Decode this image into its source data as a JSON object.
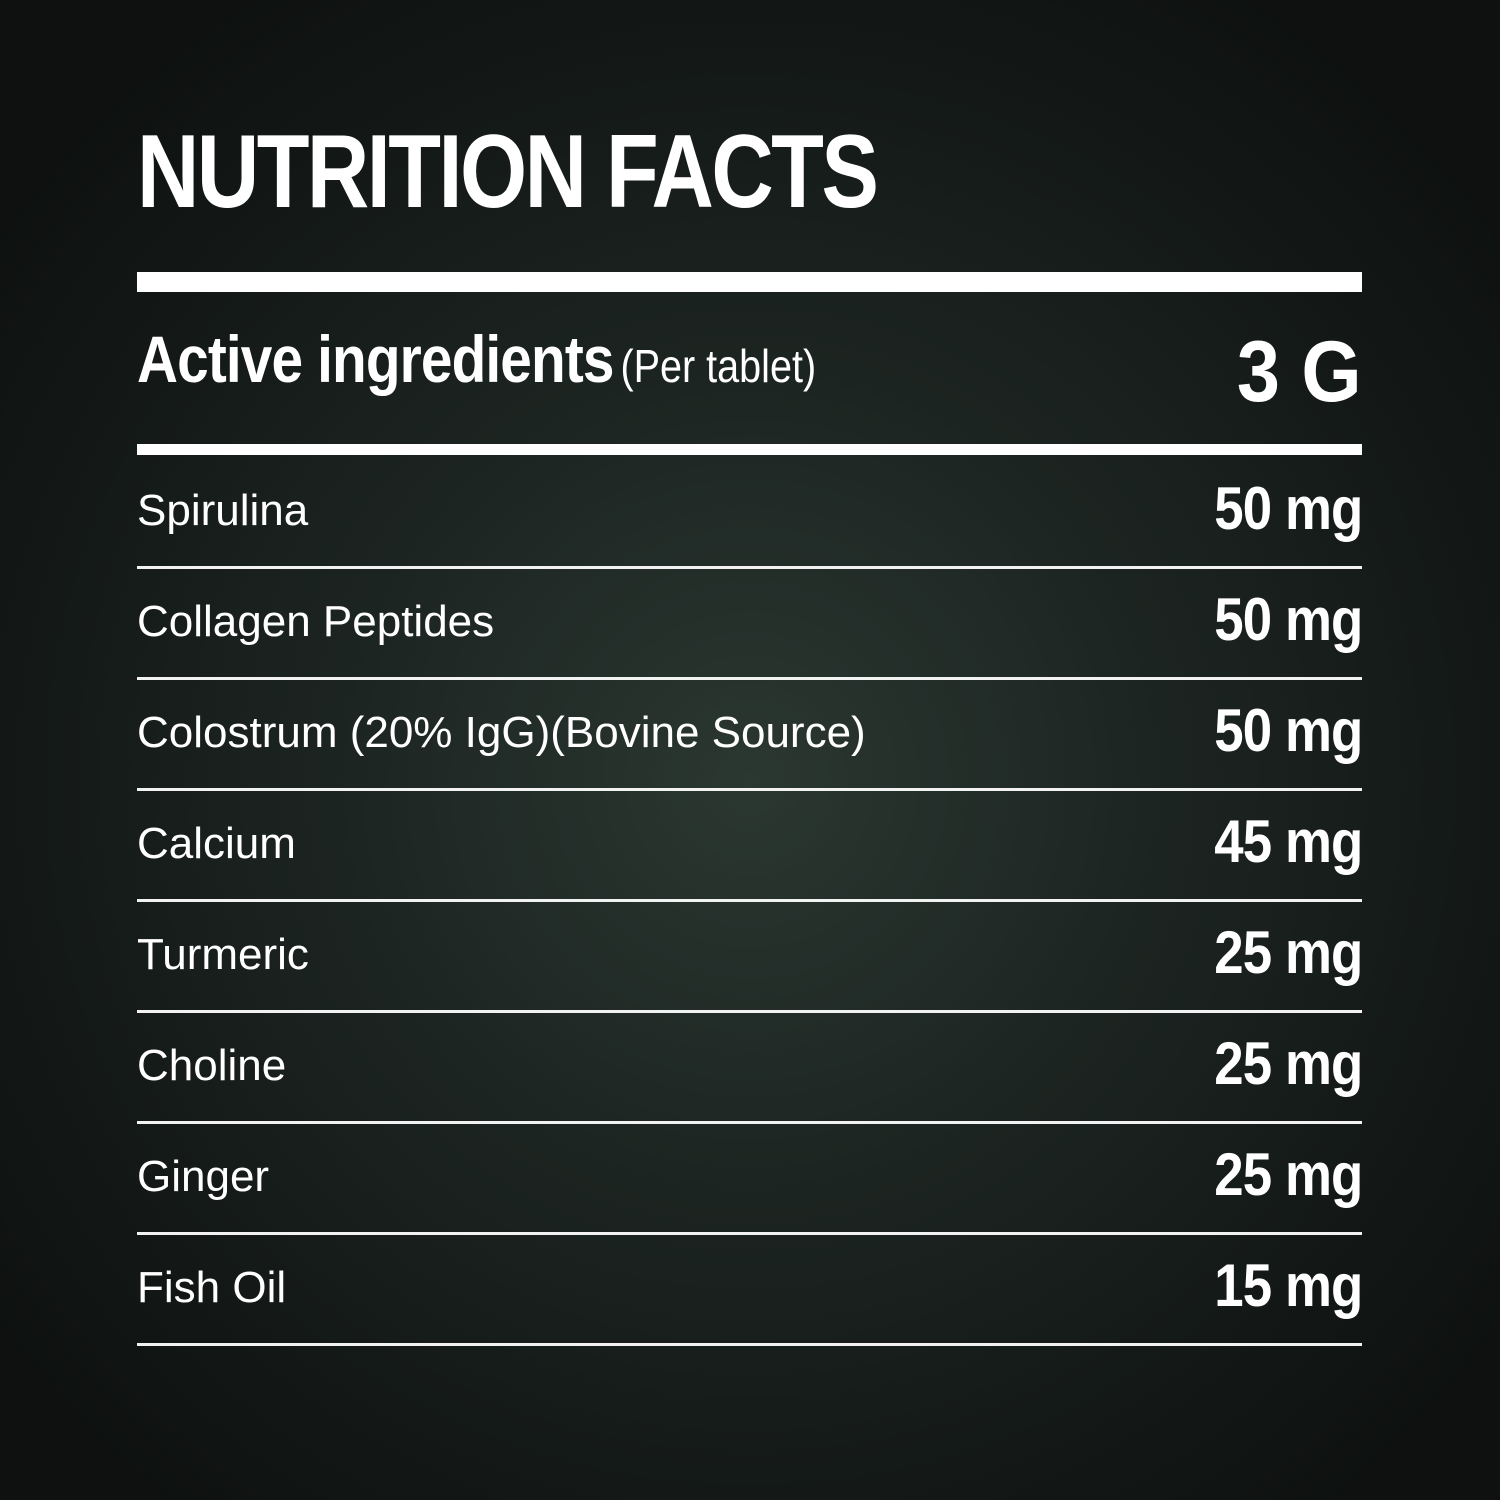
{
  "title": "NUTRITION FACTS",
  "header": {
    "label": "Active ingredients",
    "note": "(Per tablet)",
    "amount": "3 G"
  },
  "ingredients": [
    {
      "name": "Spirulina",
      "amount": "50 mg"
    },
    {
      "name": "Collagen Peptides",
      "amount": "50 mg"
    },
    {
      "name": "Colostrum (20% IgG)(Bovine Source)",
      "amount": "50 mg"
    },
    {
      "name": "Calcium",
      "amount": "45 mg"
    },
    {
      "name": "Turmeric",
      "amount": "25 mg"
    },
    {
      "name": "Choline",
      "amount": "25 mg"
    },
    {
      "name": "Ginger",
      "amount": "25 mg"
    },
    {
      "name": "Fish Oil",
      "amount": "15 mg"
    }
  ]
}
